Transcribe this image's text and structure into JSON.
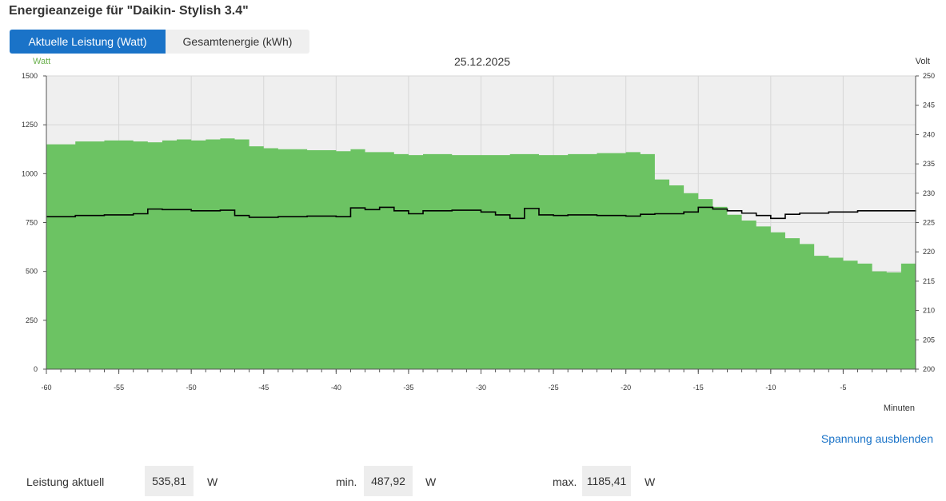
{
  "page": {
    "title": "Energieanzeige für \"Daikin- Stylish 3.4\""
  },
  "tabs": [
    {
      "label": "Aktuelle Leistung (Watt)",
      "active": true
    },
    {
      "label": "Gesamtenergie (kWh)",
      "active": false
    }
  ],
  "colors": {
    "power_fill": "#6cc363",
    "voltage_line": "#000000",
    "plot_background": "#efefef",
    "grid": "#d7d7d7",
    "accent": "#1a73c8",
    "watt_label": "#6ab04c"
  },
  "chart_data": {
    "type": "area",
    "title": "25.12.2025",
    "x_label": "Minuten",
    "x_range": [
      -60,
      0
    ],
    "x_ticks": [
      -60,
      -55,
      -50,
      -45,
      -40,
      -35,
      -30,
      -25,
      -20,
      -15,
      -10,
      -5
    ],
    "grid": true,
    "axes": {
      "left": {
        "label": "Watt",
        "range": [
          0,
          1500
        ],
        "ticks": [
          0,
          250,
          500,
          750,
          1000,
          1250,
          1500
        ]
      },
      "right": {
        "label": "Volt",
        "range": [
          200,
          250
        ],
        "ticks": [
          200,
          205,
          210,
          215,
          220,
          225,
          230,
          235,
          240,
          245,
          250
        ]
      }
    },
    "series": [
      {
        "axis": "left",
        "style": "step-area",
        "x": [
          -60,
          -58,
          -56,
          -54,
          -53,
          -52,
          -51,
          -50,
          -49,
          -48,
          -47,
          -46,
          -45,
          -44,
          -42,
          -40,
          -39,
          -38,
          -36,
          -35,
          -34,
          -32,
          -30,
          -28,
          -26,
          -24,
          -22,
          -20,
          -19,
          -18,
          -17,
          -16,
          -15,
          -14,
          -13,
          -12,
          -11,
          -10,
          -9,
          -8,
          -7,
          -6,
          -5,
          -4,
          -3,
          -2,
          -1,
          0
        ],
        "values": [
          1150,
          1165,
          1170,
          1165,
          1160,
          1170,
          1175,
          1170,
          1175,
          1180,
          1175,
          1140,
          1130,
          1125,
          1120,
          1115,
          1125,
          1110,
          1100,
          1095,
          1100,
          1095,
          1095,
          1100,
          1095,
          1100,
          1105,
          1110,
          1100,
          970,
          940,
          900,
          870,
          830,
          790,
          760,
          730,
          700,
          670,
          640,
          580,
          570,
          555,
          540,
          500,
          495,
          540,
          535
        ]
      },
      {
        "axis": "right",
        "style": "step-line",
        "x": [
          -60,
          -58,
          -56,
          -54,
          -53,
          -52,
          -50,
          -48,
          -47,
          -46,
          -44,
          -42,
          -40,
          -39,
          -38,
          -37,
          -36,
          -35,
          -34,
          -32,
          -30,
          -29,
          -28,
          -27,
          -26,
          -25,
          -24,
          -22,
          -20,
          -19,
          -18,
          -16,
          -15,
          -14,
          -13,
          -12,
          -11,
          -10,
          -9,
          -8,
          -6,
          -4,
          -2,
          0
        ],
        "values": [
          226.0,
          226.2,
          226.3,
          226.5,
          227.3,
          227.2,
          227.0,
          227.1,
          226.2,
          225.9,
          226.0,
          226.1,
          226.0,
          227.5,
          227.2,
          227.6,
          227.0,
          226.5,
          227.0,
          227.1,
          226.8,
          226.3,
          225.7,
          227.4,
          226.3,
          226.2,
          226.3,
          226.2,
          226.1,
          226.4,
          226.5,
          226.8,
          227.6,
          227.3,
          227.0,
          226.6,
          226.2,
          225.7,
          226.4,
          226.6,
          226.8,
          227.0,
          227.0,
          227.1
        ]
      }
    ]
  },
  "voltage_toggle": {
    "label": "Spannung ausblenden"
  },
  "stats": [
    {
      "label": "Leistung aktuell",
      "value": "535,81",
      "unit": "W"
    },
    {
      "label": "min.",
      "value": "487,92",
      "unit": "W"
    },
    {
      "label": "max.",
      "value": "1185,41",
      "unit": "W"
    }
  ]
}
